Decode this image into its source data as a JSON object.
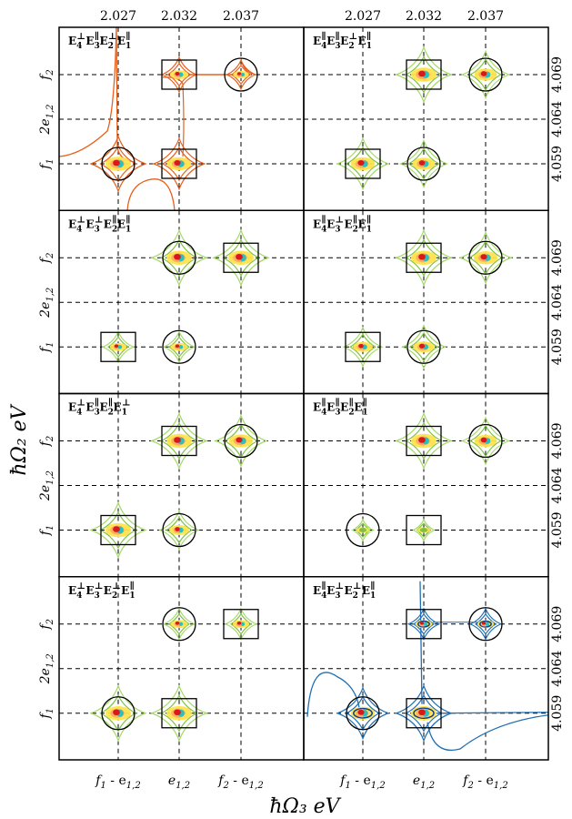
{
  "chart_data": {
    "type": "contour",
    "layout": "4 rows x 2 columns",
    "xlabel": "ħΩ₃ eV",
    "ylabel": "ħΩ₂ eV",
    "x_top_ticks": [
      "2.027",
      "2.032",
      "2.037"
    ],
    "x_bottom_ticks": [
      {
        "main": "f",
        "sub1": "1",
        "mid": " - e",
        "sub2": "1,2"
      },
      {
        "main": "e",
        "sub1": "1,2",
        "mid": "",
        "sub2": ""
      },
      {
        "main": "f",
        "sub1": "2",
        "mid": " - e",
        "sub2": "1,2"
      }
    ],
    "y_left_ticks": [
      {
        "main": "f",
        "sub": "2"
      },
      {
        "main": "2e",
        "sub": "1,2"
      },
      {
        "main": "f",
        "sub": "1"
      }
    ],
    "y_right_ticks": [
      "4.059",
      "4.064",
      "4.069"
    ],
    "x_values": [
      2.027,
      2.032,
      2.037
    ],
    "y_values": [
      4.059,
      4.064,
      4.069
    ],
    "panels": [
      {
        "row": 0,
        "col": 0,
        "label": "E4⊥E3∥E2⊥E1∥",
        "label_parts": [
          "⊥",
          "∥",
          "⊥",
          "∥"
        ],
        "palette": "orange",
        "peaks": [
          {
            "x": 2.027,
            "y": 4.059,
            "marker": "circle",
            "strength": 1.0
          },
          {
            "x": 2.032,
            "y": 4.059,
            "marker": "square",
            "strength": 0.9
          },
          {
            "x": 2.032,
            "y": 4.069,
            "marker": "square",
            "strength": 0.5
          },
          {
            "x": 2.037,
            "y": 4.069,
            "marker": "circle",
            "strength": 0.35
          }
        ]
      },
      {
        "row": 0,
        "col": 1,
        "label": "E4∥E3∥E2⊥E1∥",
        "label_parts": [
          "∥",
          "∥",
          "⊥",
          "∥"
        ],
        "palette": "green",
        "peaks": [
          {
            "x": 2.027,
            "y": 4.059,
            "marker": "square",
            "strength": 0.9
          },
          {
            "x": 2.032,
            "y": 4.059,
            "marker": "circle",
            "strength": 0.8
          },
          {
            "x": 2.032,
            "y": 4.069,
            "marker": "square",
            "strength": 1.0
          },
          {
            "x": 2.037,
            "y": 4.069,
            "marker": "circle",
            "strength": 0.8
          }
        ]
      },
      {
        "row": 1,
        "col": 0,
        "label": "E4⊥E3⊥E2∥E1∥",
        "label_parts": [
          "⊥",
          "⊥",
          "∥",
          "∥"
        ],
        "palette": "green",
        "peaks": [
          {
            "x": 2.027,
            "y": 4.059,
            "marker": "square",
            "strength": 0.4
          },
          {
            "x": 2.032,
            "y": 4.059,
            "marker": "circle",
            "strength": 0.4
          },
          {
            "x": 2.032,
            "y": 4.069,
            "marker": "circle",
            "strength": 1.0
          },
          {
            "x": 2.037,
            "y": 4.069,
            "marker": "square",
            "strength": 1.0
          }
        ]
      },
      {
        "row": 1,
        "col": 1,
        "label": "E4∥E3⊥E2∥E1∥",
        "label_parts": [
          "∥",
          "⊥",
          "∥",
          "∥"
        ],
        "palette": "green",
        "peaks": [
          {
            "x": 2.027,
            "y": 4.059,
            "marker": "square",
            "strength": 0.6
          },
          {
            "x": 2.032,
            "y": 4.059,
            "marker": "circle",
            "strength": 0.7
          },
          {
            "x": 2.032,
            "y": 4.069,
            "marker": "square",
            "strength": 1.0
          },
          {
            "x": 2.037,
            "y": 4.069,
            "marker": "circle",
            "strength": 0.9
          }
        ]
      },
      {
        "row": 2,
        "col": 0,
        "label": "E4⊥E3∥E2∥E1⊥",
        "label_parts": [
          "⊥",
          "∥",
          "∥",
          "⊥"
        ],
        "palette": "green",
        "peaks": [
          {
            "x": 2.027,
            "y": 4.059,
            "marker": "square",
            "strength": 1.0
          },
          {
            "x": 2.032,
            "y": 4.059,
            "marker": "circle",
            "strength": 0.6
          },
          {
            "x": 2.032,
            "y": 4.069,
            "marker": "square",
            "strength": 1.0
          },
          {
            "x": 2.037,
            "y": 4.069,
            "marker": "circle",
            "strength": 0.9
          }
        ]
      },
      {
        "row": 2,
        "col": 1,
        "label": "E4∥E3∥E2∥E1∥",
        "label_parts": [
          "∥",
          "∥",
          "∥",
          "∥"
        ],
        "palette": "green",
        "peaks": [
          {
            "x": 2.027,
            "y": 4.059,
            "marker": "circle",
            "strength": 0.15
          },
          {
            "x": 2.032,
            "y": 4.059,
            "marker": "square",
            "strength": 0.15
          },
          {
            "x": 2.032,
            "y": 4.069,
            "marker": "square",
            "strength": 1.0
          },
          {
            "x": 2.037,
            "y": 4.069,
            "marker": "circle",
            "strength": 0.8
          }
        ]
      },
      {
        "row": 3,
        "col": 0,
        "label": "E4⊥E3⊥E2⊥E1∥",
        "label_parts": [
          "⊥",
          "⊥",
          "⊥",
          "∥"
        ],
        "palette": "green",
        "peaks": [
          {
            "x": 2.027,
            "y": 4.059,
            "marker": "circle",
            "strength": 1.0
          },
          {
            "x": 2.032,
            "y": 4.059,
            "marker": "square",
            "strength": 1.0
          },
          {
            "x": 2.032,
            "y": 4.069,
            "marker": "circle",
            "strength": 0.4
          },
          {
            "x": 2.037,
            "y": 4.069,
            "marker": "square",
            "strength": 0.4
          }
        ]
      },
      {
        "row": 3,
        "col": 1,
        "label": "E4∥E3⊥E2⊥E1∥",
        "label_parts": [
          "∥",
          "⊥",
          "⊥",
          "∥"
        ],
        "palette": "blue",
        "peaks": [
          {
            "x": 2.027,
            "y": 4.059,
            "marker": "circle",
            "strength": 0.9
          },
          {
            "x": 2.032,
            "y": 4.059,
            "marker": "square",
            "strength": 1.0
          },
          {
            "x": 2.032,
            "y": 4.069,
            "marker": "square",
            "strength": 0.4
          },
          {
            "x": 2.037,
            "y": 4.069,
            "marker": "circle",
            "strength": 0.4
          }
        ]
      }
    ],
    "colors": {
      "orange": "#e8601c",
      "green": "#7fc243",
      "blue": "#1f6fb4",
      "peak_core": "#d7191c",
      "peak_mid": "#fdae61",
      "peak_yellow": "#ffe34d",
      "peak_cyan": "#2bbfbf"
    },
    "grid": "dashed"
  }
}
